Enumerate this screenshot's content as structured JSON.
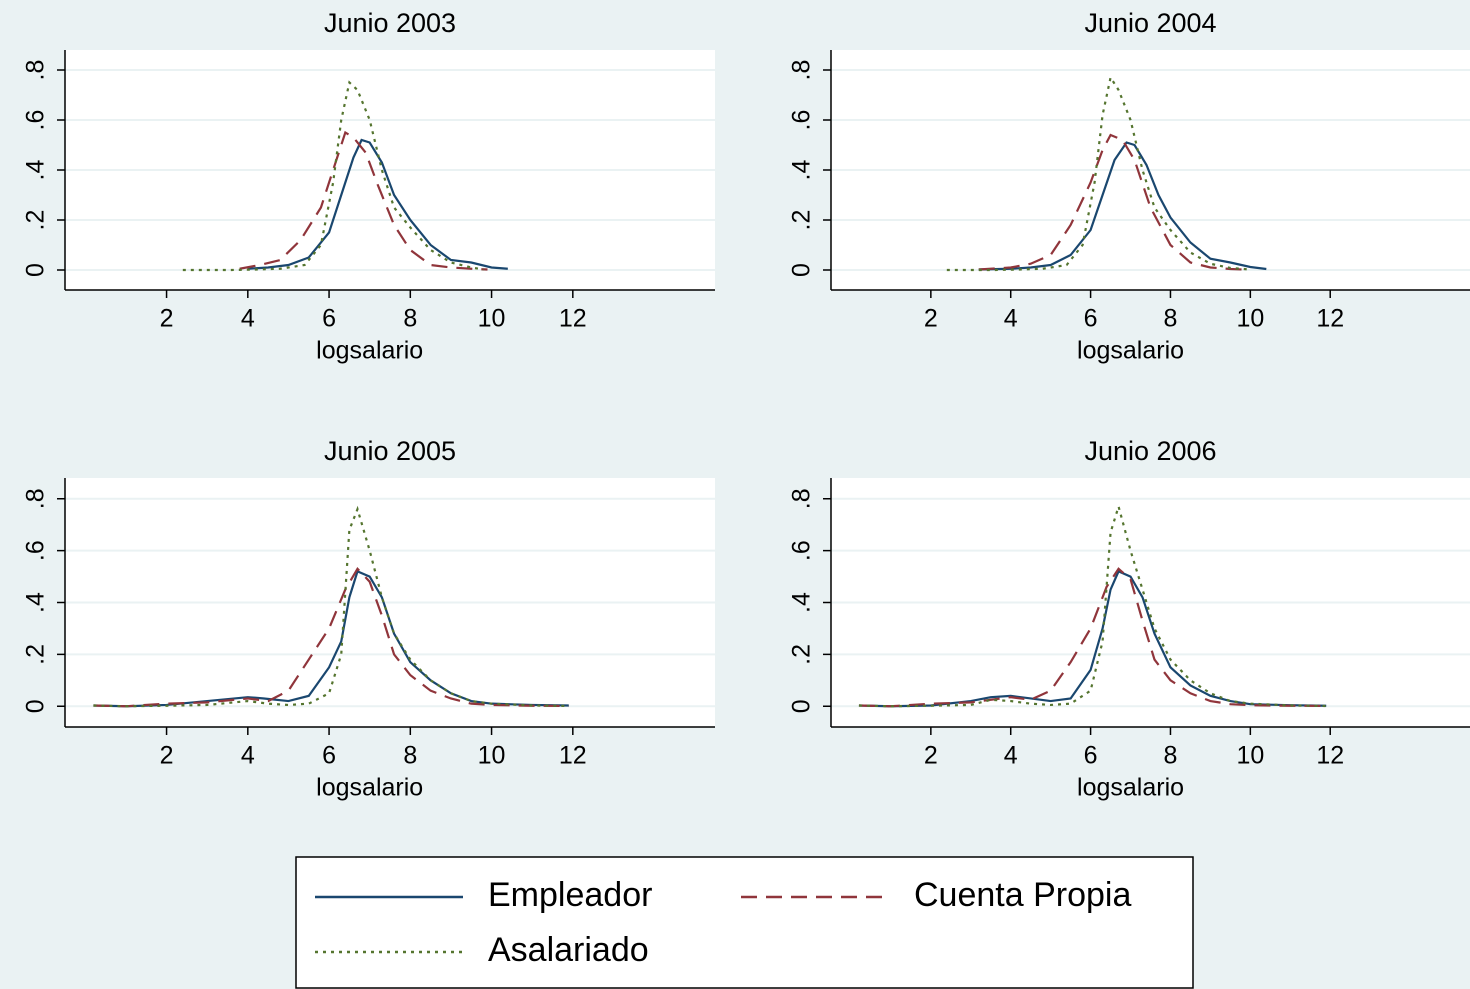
{
  "legend": [
    {
      "name": "Empleador",
      "color": "#1a476f",
      "dash": "solid"
    },
    {
      "name": "Cuenta Propia",
      "color": "#90353b",
      "dash": "dashed"
    },
    {
      "name": "Asalariado",
      "color": "#55752f",
      "dash": "dotted"
    }
  ],
  "chart_data": [
    {
      "type": "line",
      "title": "Junio 2003",
      "x_label": "logsalario",
      "xlim": [
        -0.5,
        15.5
      ],
      "xticks": [
        2,
        4,
        6,
        8,
        10,
        12
      ],
      "ylim": [
        -0.08,
        0.88
      ],
      "yticks": [
        0,
        {
          "value": 0.2,
          "label": ".2"
        },
        {
          "value": 0.4,
          "label": ".4"
        },
        {
          "value": 0.6,
          "label": ".6"
        },
        {
          "value": 0.8,
          "label": ".8"
        }
      ],
      "grid": true,
      "series": [
        {
          "x": [
            4,
            4.5,
            5,
            5.5,
            6,
            6.3,
            6.6,
            6.8,
            7,
            7.3,
            7.6,
            8,
            8.5,
            9,
            9.5,
            10,
            10.4
          ],
          "values": [
            0.005,
            0.01,
            0.02,
            0.05,
            0.15,
            0.3,
            0.45,
            0.52,
            0.51,
            0.43,
            0.3,
            0.2,
            0.1,
            0.04,
            0.03,
            0.01,
            0.005
          ]
        },
        {
          "x": [
            3.8,
            4.3,
            4.8,
            5.3,
            5.8,
            6.1,
            6.4,
            6.6,
            6.9,
            7.2,
            7.6,
            8,
            8.5,
            9,
            9.5,
            9.9
          ],
          "values": [
            0.005,
            0.02,
            0.04,
            0.12,
            0.25,
            0.4,
            0.55,
            0.53,
            0.47,
            0.34,
            0.18,
            0.08,
            0.02,
            0.01,
            0.005,
            0.002
          ]
        },
        {
          "x": [
            2.4,
            3,
            3.6,
            4.2,
            4.8,
            5.4,
            5.8,
            6.1,
            6.3,
            6.5,
            6.7,
            7,
            7.3,
            7.6,
            8,
            8.5,
            9,
            9.5,
            9.8
          ],
          "values": [
            0,
            0,
            0,
            0.002,
            0.005,
            0.02,
            0.1,
            0.35,
            0.6,
            0.75,
            0.72,
            0.6,
            0.4,
            0.25,
            0.17,
            0.08,
            0.03,
            0.01,
            0.002
          ]
        }
      ]
    },
    {
      "type": "line",
      "title": "Junio 2004",
      "x_label": "logsalario",
      "xlim": [
        -0.5,
        15.5
      ],
      "xticks": [
        2,
        4,
        6,
        8,
        10,
        12
      ],
      "ylim": [
        -0.08,
        0.88
      ],
      "yticks": [
        0,
        {
          "value": 0.2,
          "label": ".2"
        },
        {
          "value": 0.4,
          "label": ".4"
        },
        {
          "value": 0.6,
          "label": ".6"
        },
        {
          "value": 0.8,
          "label": ".8"
        }
      ],
      "grid": true,
      "series": [
        {
          "x": [
            3.2,
            4,
            4.5,
            5,
            5.5,
            6,
            6.3,
            6.6,
            6.9,
            7.1,
            7.4,
            7.7,
            8,
            8.5,
            9,
            9.5,
            10,
            10.4
          ],
          "values": [
            0.002,
            0.005,
            0.01,
            0.02,
            0.06,
            0.16,
            0.3,
            0.44,
            0.51,
            0.5,
            0.42,
            0.3,
            0.21,
            0.11,
            0.045,
            0.03,
            0.012,
            0.004
          ]
        },
        {
          "x": [
            3.2,
            4,
            4.5,
            5,
            5.5,
            6,
            6.3,
            6.5,
            6.8,
            7.1,
            7.5,
            8,
            8.5,
            9,
            9.5,
            10
          ],
          "values": [
            0.002,
            0.01,
            0.025,
            0.06,
            0.18,
            0.35,
            0.48,
            0.54,
            0.52,
            0.44,
            0.25,
            0.1,
            0.03,
            0.01,
            0.004,
            0.001
          ]
        },
        {
          "x": [
            2.4,
            3,
            3.6,
            4.2,
            4.8,
            5.4,
            5.8,
            6.1,
            6.3,
            6.5,
            6.7,
            7,
            7.3,
            7.6,
            8,
            8.5,
            9,
            9.5,
            10
          ],
          "values": [
            0,
            0,
            0,
            0.002,
            0.005,
            0.02,
            0.1,
            0.35,
            0.62,
            0.77,
            0.72,
            0.6,
            0.4,
            0.25,
            0.16,
            0.07,
            0.025,
            0.008,
            0.002
          ]
        }
      ]
    },
    {
      "type": "line",
      "title": "Junio 2005",
      "x_label": "logsalario",
      "xlim": [
        -0.5,
        15.5
      ],
      "xticks": [
        2,
        4,
        6,
        8,
        10,
        12
      ],
      "ylim": [
        -0.08,
        0.88
      ],
      "yticks": [
        0,
        {
          "value": 0.2,
          "label": ".2"
        },
        {
          "value": 0.4,
          "label": ".4"
        },
        {
          "value": 0.6,
          "label": ".6"
        },
        {
          "value": 0.8,
          "label": ".8"
        }
      ],
      "grid": true,
      "series": [
        {
          "x": [
            0.2,
            1,
            2,
            3,
            4,
            4.4,
            5,
            5.5,
            6,
            6.3,
            6.5,
            6.7,
            7,
            7.3,
            7.6,
            8,
            8.5,
            9,
            9.5,
            10,
            11,
            11.9
          ],
          "values": [
            0.003,
            0,
            0.005,
            0.02,
            0.035,
            0.03,
            0.02,
            0.04,
            0.15,
            0.25,
            0.42,
            0.52,
            0.5,
            0.42,
            0.28,
            0.17,
            0.1,
            0.05,
            0.02,
            0.01,
            0.005,
            0.003
          ]
        },
        {
          "x": [
            0.2,
            1,
            2,
            3,
            4,
            4.5,
            5,
            5.5,
            6,
            6.4,
            6.7,
            7,
            7.3,
            7.6,
            8,
            8.5,
            9,
            9.5,
            10,
            11,
            11.9
          ],
          "values": [
            0.003,
            0,
            0.01,
            0.015,
            0.03,
            0.02,
            0.06,
            0.18,
            0.3,
            0.45,
            0.53,
            0.48,
            0.35,
            0.2,
            0.12,
            0.06,
            0.03,
            0.01,
            0.005,
            0.002,
            0.001
          ]
        },
        {
          "x": [
            0.2,
            1,
            2,
            3,
            4,
            4.5,
            5,
            5.5,
            6,
            6.3,
            6.5,
            6.7,
            7,
            7.3,
            7.6,
            8,
            8.5,
            9,
            9.5,
            10,
            11,
            11.9
          ],
          "values": [
            0.003,
            0,
            0.002,
            0.005,
            0.02,
            0.01,
            0.005,
            0.01,
            0.05,
            0.2,
            0.68,
            0.76,
            0.6,
            0.42,
            0.28,
            0.18,
            0.1,
            0.05,
            0.02,
            0.01,
            0.003,
            0.001
          ]
        }
      ]
    },
    {
      "type": "line",
      "title": "Junio 2006",
      "x_label": "logsalario",
      "xlim": [
        -0.5,
        15.5
      ],
      "xticks": [
        2,
        4,
        6,
        8,
        10,
        12
      ],
      "ylim": [
        -0.08,
        0.88
      ],
      "yticks": [
        0,
        {
          "value": 0.2,
          "label": ".2"
        },
        {
          "value": 0.4,
          "label": ".4"
        },
        {
          "value": 0.6,
          "label": ".6"
        },
        {
          "value": 0.8,
          "label": ".8"
        }
      ],
      "grid": true,
      "series": [
        {
          "x": [
            0.2,
            1,
            2,
            3,
            3.5,
            4,
            4.5,
            5,
            5.5,
            6,
            6.3,
            6.5,
            6.7,
            7,
            7.3,
            7.6,
            8,
            8.5,
            9,
            9.5,
            10,
            11,
            11.9
          ],
          "values": [
            0.003,
            0,
            0.003,
            0.02,
            0.035,
            0.04,
            0.03,
            0.02,
            0.03,
            0.14,
            0.3,
            0.45,
            0.52,
            0.5,
            0.42,
            0.28,
            0.15,
            0.08,
            0.04,
            0.02,
            0.008,
            0.004,
            0.002
          ]
        },
        {
          "x": [
            0.2,
            1,
            2,
            3,
            4,
            4.5,
            5,
            5.5,
            6,
            6.4,
            6.7,
            7,
            7.3,
            7.6,
            8,
            8.5,
            9,
            9.5,
            10,
            11,
            11.9
          ],
          "values": [
            0.003,
            0,
            0.01,
            0.015,
            0.035,
            0.025,
            0.06,
            0.17,
            0.3,
            0.46,
            0.53,
            0.49,
            0.33,
            0.18,
            0.1,
            0.05,
            0.02,
            0.008,
            0.004,
            0.002,
            0.001
          ]
        },
        {
          "x": [
            0.2,
            1,
            2,
            3,
            3.5,
            4,
            4.5,
            5,
            5.5,
            6,
            6.3,
            6.5,
            6.7,
            7,
            7.3,
            7.6,
            8,
            8.5,
            9,
            9.5,
            10,
            11,
            11.9
          ],
          "values": [
            0.003,
            0,
            0.002,
            0.005,
            0.025,
            0.02,
            0.01,
            0.005,
            0.01,
            0.06,
            0.25,
            0.67,
            0.77,
            0.6,
            0.45,
            0.3,
            0.18,
            0.1,
            0.05,
            0.02,
            0.01,
            0.003,
            0.001
          ]
        }
      ]
    }
  ]
}
